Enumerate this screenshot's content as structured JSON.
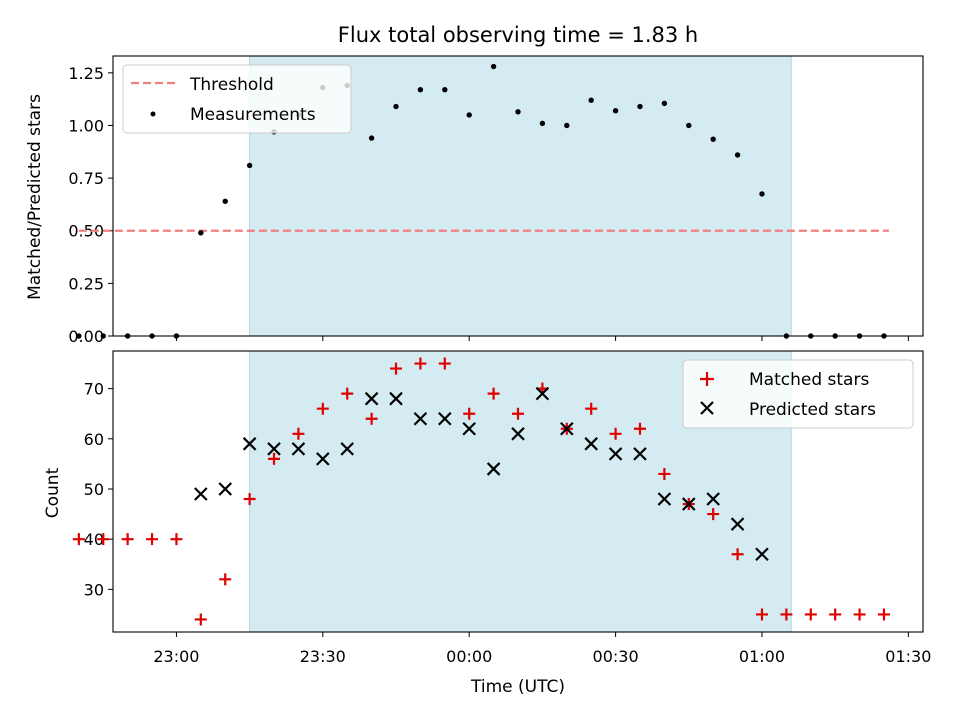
{
  "chart_data": [
    {
      "type": "scatter",
      "title": "Flux total observing time = 1.83 h",
      "ylabel": "Matched/Predicted stars",
      "ylim": [
        0,
        1.33
      ],
      "yticks": [
        0.0,
        0.25,
        0.5,
        0.75,
        1.0,
        1.25
      ],
      "ytick_labels": [
        "0.00",
        "0.25",
        "0.50",
        "0.75",
        "1.00",
        "1.25"
      ],
      "xlim": [
        "22:47",
        "01:33"
      ],
      "shaded_region": [
        "23:15",
        "01:06"
      ],
      "shade_color": "#d3ebf1",
      "legend_position": "upper-left",
      "threshold": {
        "name": "Threshold",
        "y": 0.5,
        "x": [
          "22:40",
          "01:26"
        ],
        "color": "#f08080"
      },
      "series": [
        {
          "name": "Measurements",
          "color": "#000000",
          "x": [
            "22:40",
            "22:45",
            "22:50",
            "22:55",
            "23:00",
            "23:05",
            "23:10",
            "23:15",
            "23:20",
            "23:25",
            "23:30",
            "23:35",
            "23:40",
            "23:45",
            "23:50",
            "23:55",
            "00:00",
            "00:05",
            "00:10",
            "00:15",
            "00:20",
            "00:25",
            "00:30",
            "00:35",
            "00:40",
            "00:45",
            "00:50",
            "00:55",
            "01:00",
            "01:05",
            "01:10",
            "01:15",
            "01:20",
            "01:25"
          ],
          "values": [
            0,
            0,
            0,
            0,
            0,
            0.49,
            0.64,
            0.81,
            0.97,
            1.05,
            1.18,
            1.19,
            0.94,
            1.09,
            1.17,
            1.17,
            1.05,
            1.28,
            1.065,
            1.01,
            1.0,
            1.12,
            1.07,
            1.09,
            1.105,
            1.0,
            0.935,
            0.86,
            0.675,
            0,
            0,
            0,
            0,
            0
          ]
        }
      ]
    },
    {
      "type": "scatter",
      "xlabel": "Time (UTC)",
      "ylabel": "Count",
      "ylim": [
        21.5,
        77.5
      ],
      "yticks": [
        30,
        40,
        50,
        60,
        70
      ],
      "xticks": [
        "23:00",
        "23:30",
        "00:00",
        "00:30",
        "01:00",
        "01:30"
      ],
      "xlim": [
        "22:47",
        "01:33"
      ],
      "shaded_region": [
        "23:15",
        "01:06"
      ],
      "legend_position": "upper-right",
      "series": [
        {
          "name": "Matched stars",
          "color": "#e00000",
          "x": [
            "22:40",
            "22:45",
            "22:50",
            "22:55",
            "23:00",
            "23:05",
            "23:10",
            "23:15",
            "23:20",
            "23:25",
            "23:30",
            "23:35",
            "23:40",
            "23:45",
            "23:50",
            "23:55",
            "00:00",
            "00:05",
            "00:10",
            "00:15",
            "00:20",
            "00:25",
            "00:30",
            "00:35",
            "00:40",
            "00:45",
            "00:50",
            "00:55",
            "01:00",
            "01:05",
            "01:10",
            "01:15",
            "01:20",
            "01:25"
          ],
          "values": [
            40,
            40,
            40,
            40,
            40,
            24,
            32,
            48,
            56,
            61,
            66,
            69,
            64,
            74,
            75,
            75,
            65,
            69,
            65,
            70,
            62,
            66,
            61,
            62,
            53,
            47,
            45,
            37,
            25,
            25,
            25,
            25,
            25,
            25
          ]
        },
        {
          "name": "Predicted stars",
          "color": "#000000",
          "x": [
            "23:05",
            "23:10",
            "23:15",
            "23:20",
            "23:25",
            "23:30",
            "23:35",
            "23:40",
            "23:45",
            "23:50",
            "23:55",
            "00:00",
            "00:05",
            "00:10",
            "00:15",
            "00:20",
            "00:25",
            "00:30",
            "00:35",
            "00:40",
            "00:45",
            "00:50",
            "00:55",
            "01:00"
          ],
          "values": [
            49,
            50,
            59,
            58,
            58,
            56,
            58,
            68,
            68,
            64,
            64,
            62,
            54,
            61,
            69,
            62,
            59,
            57,
            57,
            48,
            47,
            48,
            43,
            37
          ]
        }
      ]
    }
  ]
}
